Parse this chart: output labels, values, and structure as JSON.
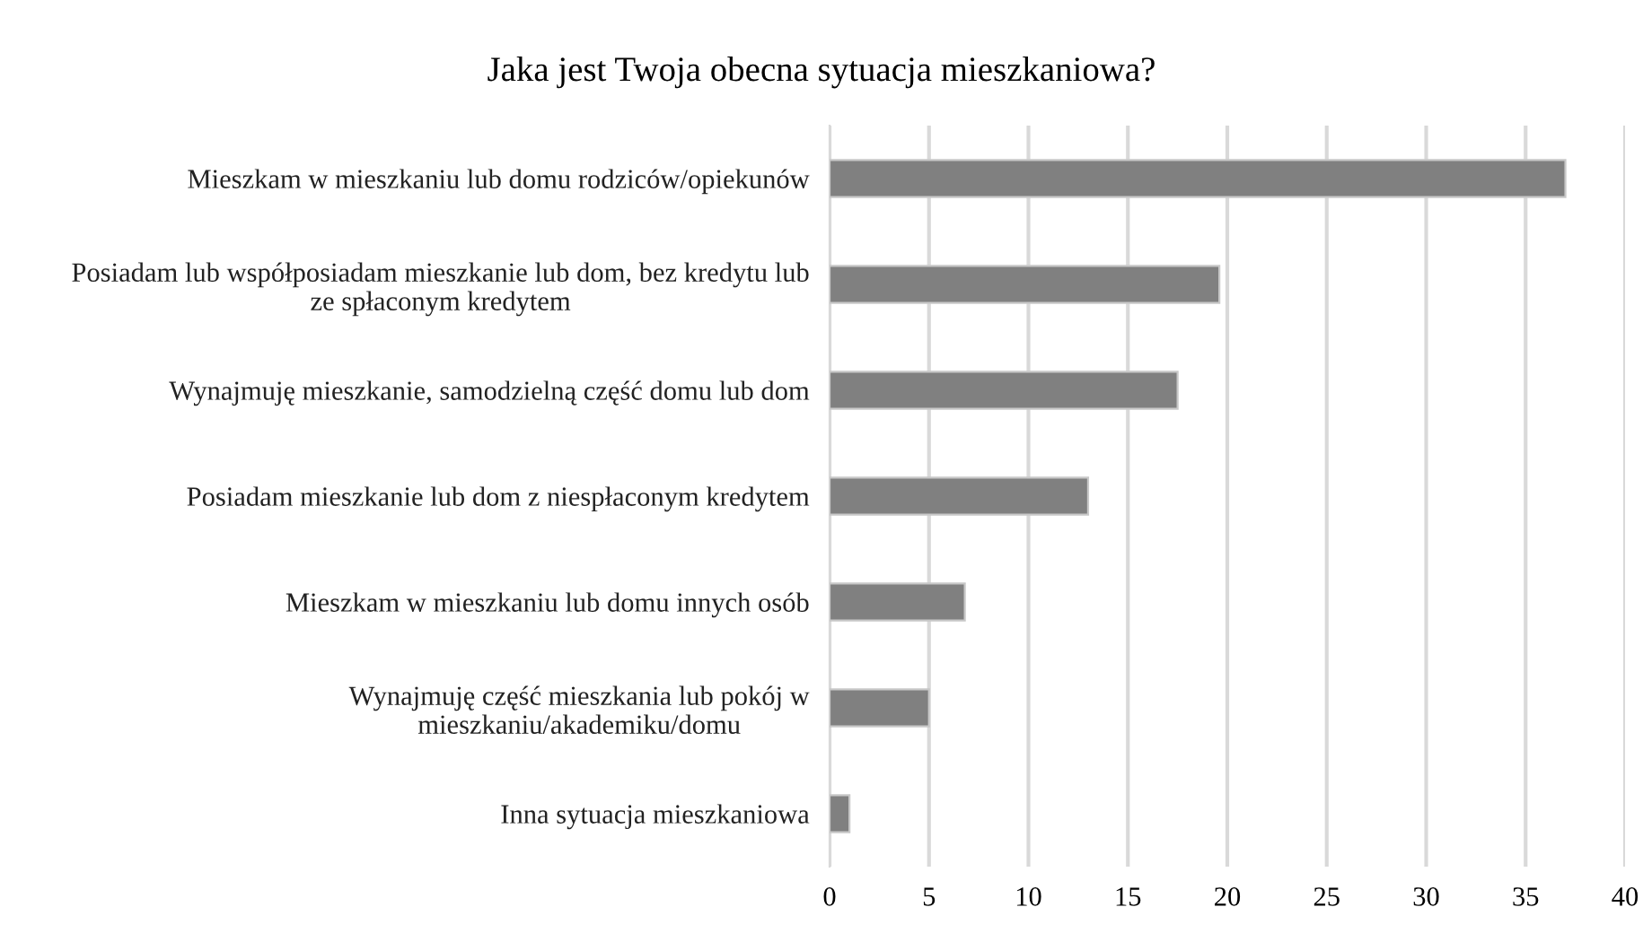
{
  "chart_data": {
    "type": "bar",
    "orientation": "horizontal",
    "title": "Jaka jest Twoja obecna sytuacja mieszkaniowa?",
    "categories": [
      "Mieszkam w mieszkaniu lub domu rodziców/opiekunów",
      "Posiadam lub współposiadam mieszkanie lub dom, bez kredytu lub\nze spłaconym kredytem",
      "Wynajmuję mieszkanie, samodzielną część domu lub dom",
      "Posiadam mieszkanie lub dom z niespłaconym kredytem",
      "Mieszkam w mieszkaniu lub domu innych osób",
      "Wynajmuję część mieszkania lub pokój w\nmieszkaniu/akademiku/domu",
      "Inna sytuacja mieszkaniowa"
    ],
    "values": [
      37.0,
      19.6,
      17.5,
      13.0,
      6.8,
      5.0,
      1.0
    ],
    "color": "#808080",
    "xlim": [
      0,
      40
    ],
    "xticks": [
      0,
      5,
      10,
      15,
      20,
      25,
      30,
      35,
      40
    ],
    "grid": "x"
  }
}
